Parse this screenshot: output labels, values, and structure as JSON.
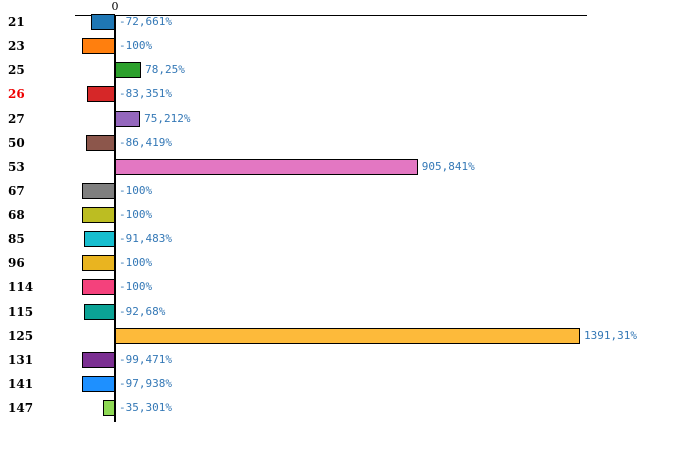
{
  "chart_data": {
    "type": "bar",
    "orientation": "horizontal",
    "title": "",
    "xlabel": "",
    "ylabel": "",
    "grid": false,
    "legend": false,
    "categories": [
      "21",
      "23",
      "25",
      "26",
      "27",
      "50",
      "53",
      "67",
      "68",
      "85",
      "96",
      "114",
      "115",
      "125",
      "131",
      "141",
      "147"
    ],
    "values": [
      -72.661,
      -100,
      78.25,
      -83.351,
      75.212,
      -86.419,
      905.841,
      -100,
      -100,
      -91.483,
      -100,
      -100,
      -92.68,
      1391.31,
      -99.471,
      -97.938,
      -35.301
    ],
    "value_labels": [
      "-72,661%",
      "-100%",
      "78,25%",
      "-83,351%",
      "75,212%",
      "-86,419%",
      "905,841%",
      "-100%",
      "-100%",
      "-91,483%",
      "-100%",
      "-100%",
      "-92,68%",
      "1391,31%",
      "-99,471%",
      "-97,938%",
      "-35,301%"
    ],
    "bar_colors": [
      "#1f77b4",
      "#ff7f0e",
      "#2ca02c",
      "#d62728",
      "#9467bd",
      "#8c564b",
      "#e377c2",
      "#7f7f7f",
      "#bcbd22",
      "#17becf",
      "#e9b420",
      "#f4417c",
      "#0ba295",
      "#fdba3a",
      "#7b2f92",
      "#1e90ff",
      "#8ed954"
    ],
    "label_colors": [
      "#000000",
      "#000000",
      "#000000",
      "#ee0000",
      "#000000",
      "#000000",
      "#000000",
      "#000000",
      "#000000",
      "#000000",
      "#000000",
      "#000000",
      "#000000",
      "#000000",
      "#000000",
      "#000000",
      "#000000"
    ],
    "axis": {
      "zero_label": "0",
      "xlim": [
        -120,
        1412
      ],
      "value_label_color": "#3478b6",
      "bar_border_color": "#000000"
    }
  }
}
